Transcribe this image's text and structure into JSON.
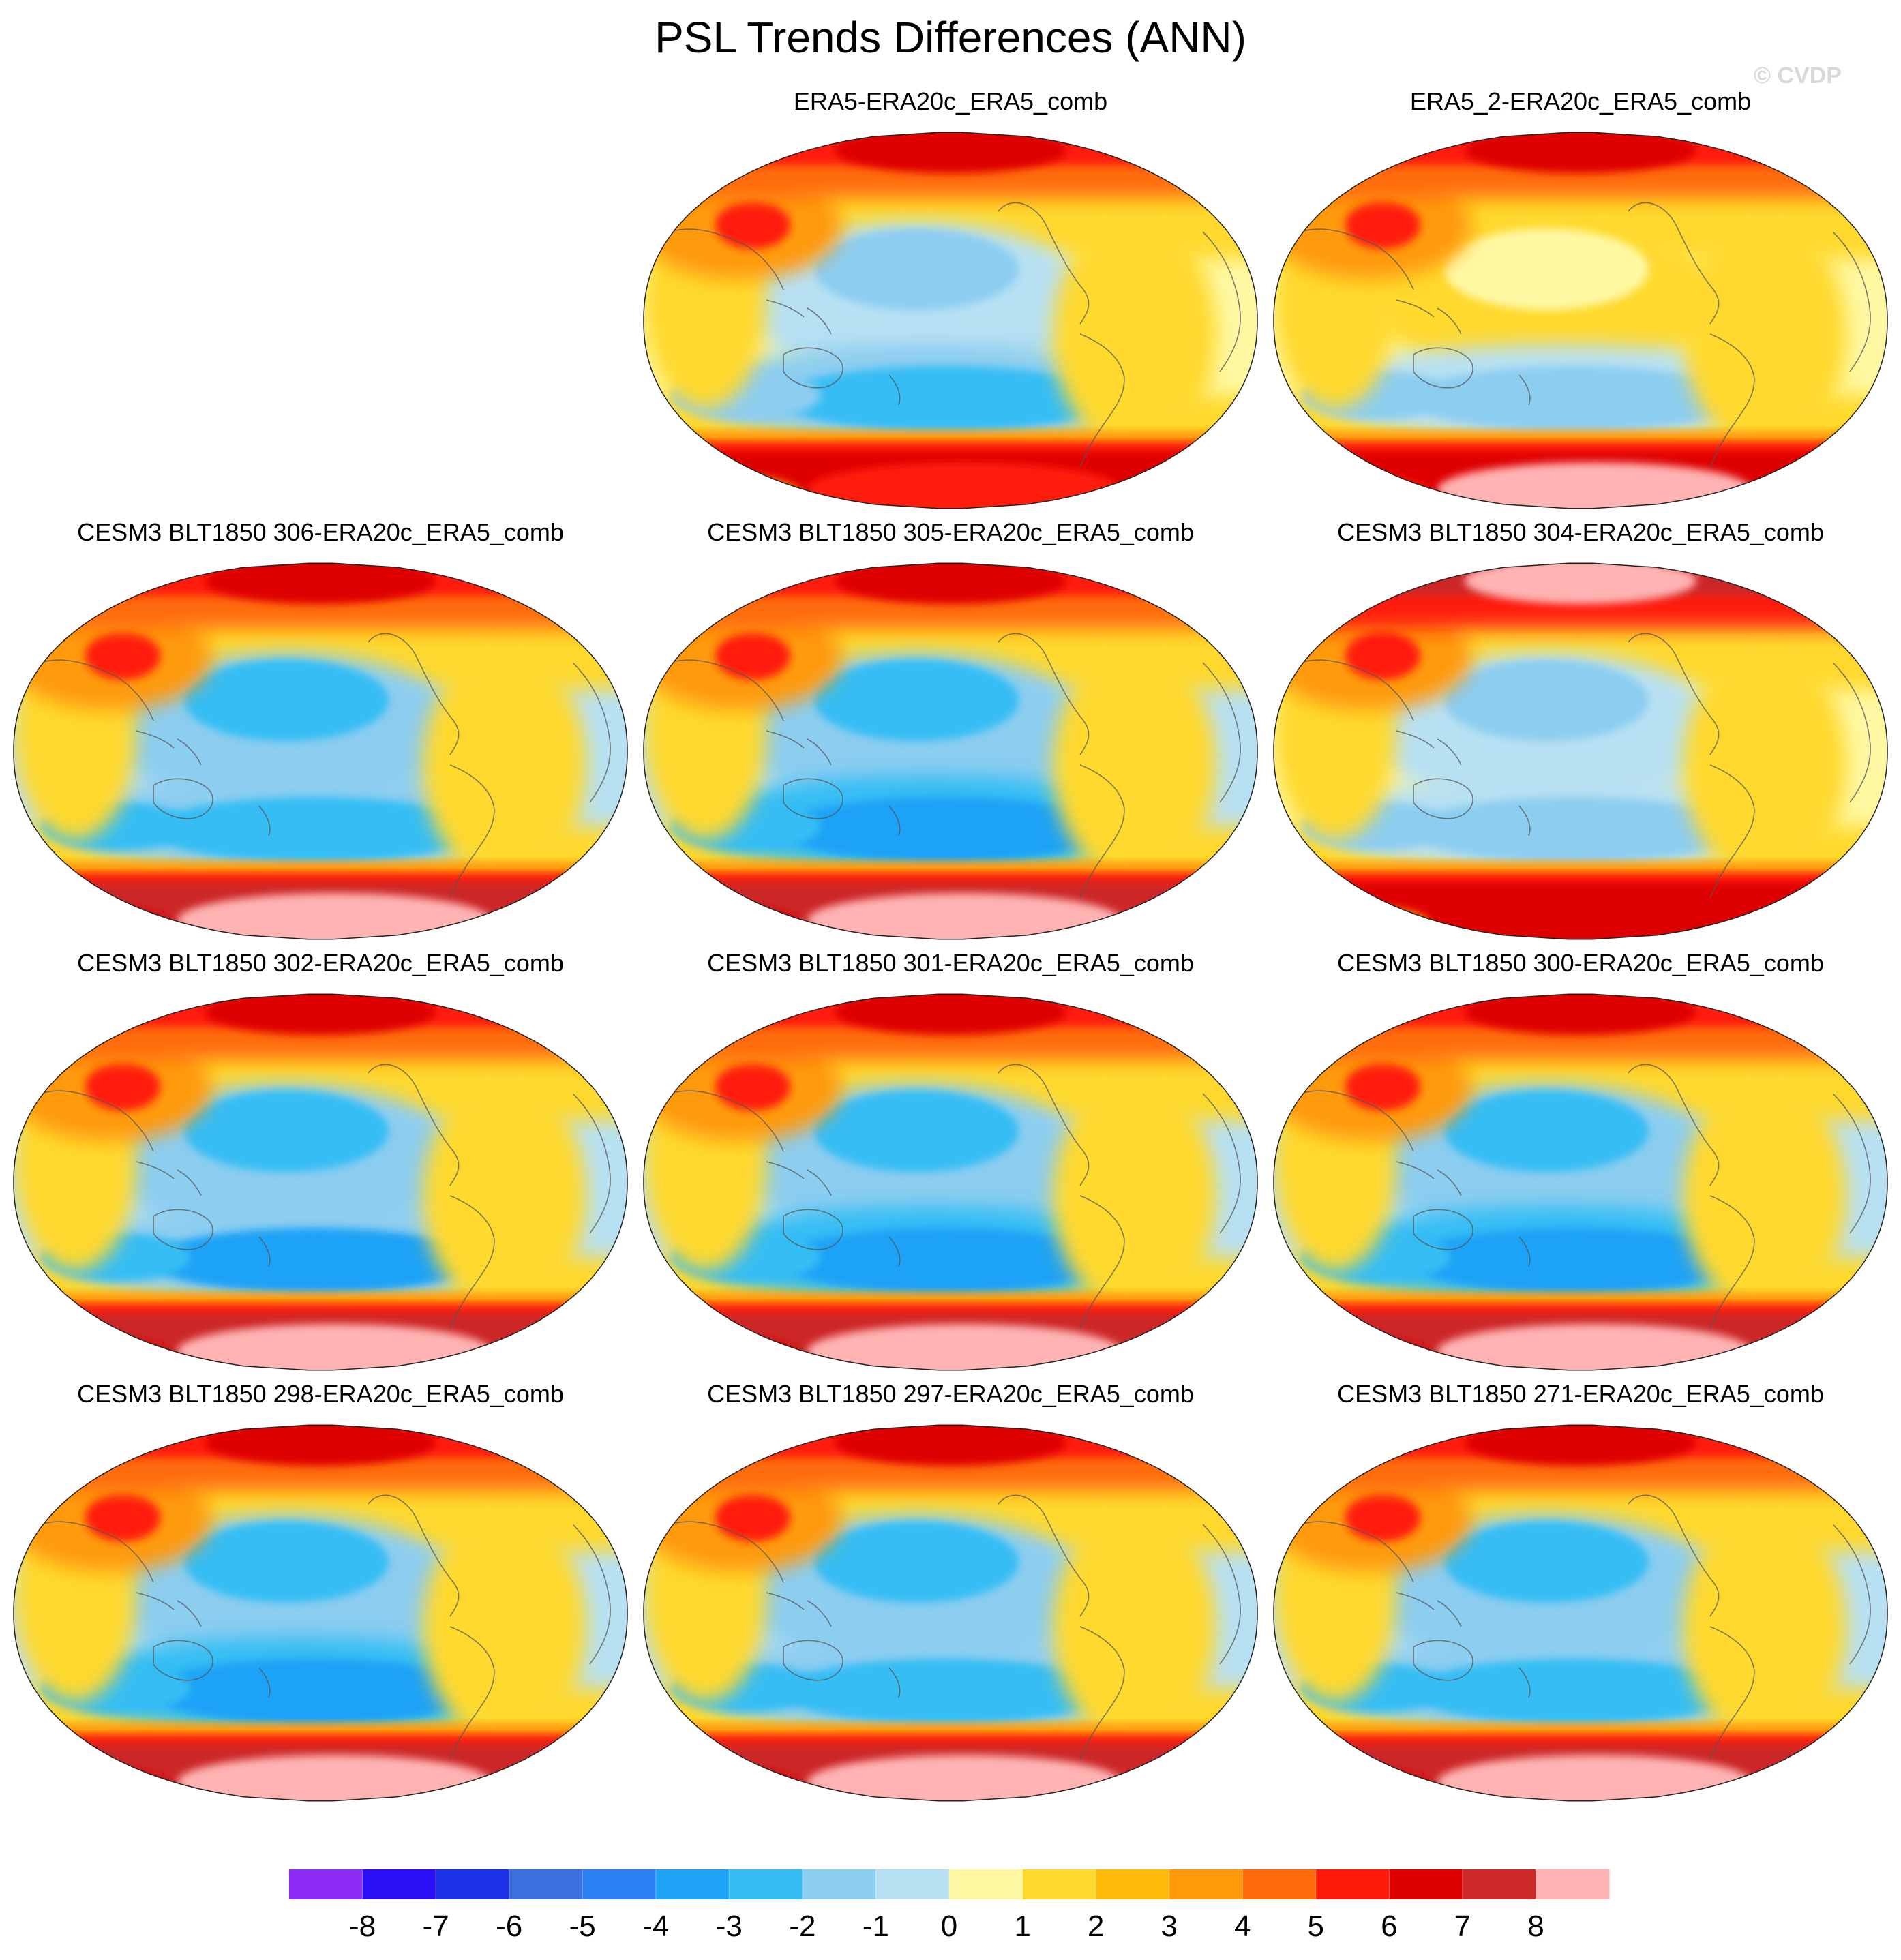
{
  "figure": {
    "title": "PSL Trends Differences (ANN)",
    "watermark": "© CVDP"
  },
  "chart_data": {
    "type": "contour-map-panel",
    "title": "PSL Trends Differences (ANN)",
    "variable": "PSL",
    "projection": "Robinson, Pacific-centered",
    "panels": [
      {
        "title": "ERA5-ERA20c_ERA5_comb",
        "style": {
          "arcticCore": 6.5,
          "antarcticBand": 6.5,
          "antarcticCore": 5.5,
          "pacNorth": -1.6,
          "southOcean": -2.2,
          "tropics": 0.7,
          "atlantic": 1.4,
          "asia": 3.2
        }
      },
      {
        "title": "ERA5_2-ERA20c_ERA5_comb",
        "style": {
          "arcticCore": 6.5,
          "antarcticBand": 6.8,
          "antarcticCore": 8.2,
          "pacNorth": 0.4,
          "southOcean": -2.0,
          "tropics": 0.8,
          "atlantic": 1.5,
          "asia": 3.0
        }
      },
      {
        "title": "CESM3 BLT1850 306-ERA20c_ERA5_comb",
        "style": {
          "arcticCore": 6.6,
          "antarcticBand": 7.0,
          "antarcticCore": 8.3,
          "pacNorth": -2.3,
          "southOcean": -2.9,
          "tropics": -0.4,
          "atlantic": 1.2,
          "asia": 3.3
        }
      },
      {
        "title": "CESM3 BLT1850 305-ERA20c_ERA5_comb",
        "style": {
          "arcticCore": 6.6,
          "antarcticBand": 7.0,
          "antarcticCore": 8.3,
          "pacNorth": -2.5,
          "southOcean": -3.4,
          "tropics": -0.4,
          "atlantic": 1.2,
          "asia": 3.3
        }
      },
      {
        "title": "CESM3 BLT1850 304-ERA20c_ERA5_comb",
        "style": {
          "arcticCore": 8.2,
          "antarcticBand": 6.8,
          "antarcticCore": 6.0,
          "pacNorth": -1.5,
          "southOcean": -1.8,
          "tropics": 0.6,
          "atlantic": 1.6,
          "asia": 3.2
        }
      },
      {
        "title": "CESM3 BLT1850 302-ERA20c_ERA5_comb",
        "style": {
          "arcticCore": 6.8,
          "antarcticBand": 7.2,
          "antarcticCore": 8.3,
          "pacNorth": -2.2,
          "southOcean": -3.1,
          "tropics": -0.3,
          "atlantic": 1.3,
          "asia": 3.3
        }
      },
      {
        "title": "CESM3 BLT1850 301-ERA20c_ERA5_comb",
        "style": {
          "arcticCore": 6.8,
          "antarcticBand": 7.4,
          "antarcticCore": 8.3,
          "pacNorth": -2.4,
          "southOcean": -3.6,
          "tropics": -0.4,
          "atlantic": 1.2,
          "asia": 3.3
        }
      },
      {
        "title": "CESM3 BLT1850 300-ERA20c_ERA5_comb",
        "style": {
          "arcticCore": 6.8,
          "antarcticBand": 7.4,
          "antarcticCore": 8.3,
          "pacNorth": -2.4,
          "southOcean": -3.5,
          "tropics": -0.4,
          "atlantic": 1.2,
          "asia": 3.3
        }
      },
      {
        "title": "CESM3 BLT1850 298-ERA20c_ERA5_comb",
        "style": {
          "arcticCore": 6.6,
          "antarcticBand": 7.0,
          "antarcticCore": 8.3,
          "pacNorth": -2.3,
          "southOcean": -3.3,
          "tropics": -0.3,
          "atlantic": 1.2,
          "asia": 3.3
        }
      },
      {
        "title": "CESM3 BLT1850 297-ERA20c_ERA5_comb",
        "style": {
          "arcticCore": 6.6,
          "antarcticBand": 7.0,
          "antarcticCore": 8.3,
          "pacNorth": -2.3,
          "southOcean": -2.9,
          "tropics": -0.3,
          "atlantic": 1.2,
          "asia": 3.3
        }
      },
      {
        "title": "CESM3 BLT1850 271-ERA20c_ERA5_comb",
        "style": {
          "arcticCore": 6.6,
          "antarcticBand": 7.0,
          "antarcticCore": 8.3,
          "pacNorth": -2.3,
          "southOcean": -3.0,
          "tropics": -0.3,
          "atlantic": 1.2,
          "asia": 3.3
        }
      }
    ],
    "colorbar": {
      "levels": [
        -8,
        -7,
        -6,
        -5,
        -4,
        -3,
        -2,
        -1,
        0,
        1,
        2,
        3,
        4,
        5,
        6,
        7,
        8
      ],
      "labels": [
        "-8",
        "-7",
        "-6",
        "-5",
        "-4",
        "-3",
        "-2",
        "-1",
        "0",
        "1",
        "2",
        "3",
        "4",
        "5",
        "6",
        "7",
        "8"
      ],
      "colors": [
        "#8b2bf5",
        "#2b10f5",
        "#1c32e6",
        "#3c6ee0",
        "#2a7ff2",
        "#1ea2f6",
        "#35bdf4",
        "#8ccdf0",
        "#b7e0f3",
        "#fff8a3",
        "#ffd92e",
        "#ffba0a",
        "#ff9a0a",
        "#ff6a0a",
        "#ff1a0a",
        "#de0000",
        "#cc2828",
        "#ffb3b3"
      ]
    }
  }
}
